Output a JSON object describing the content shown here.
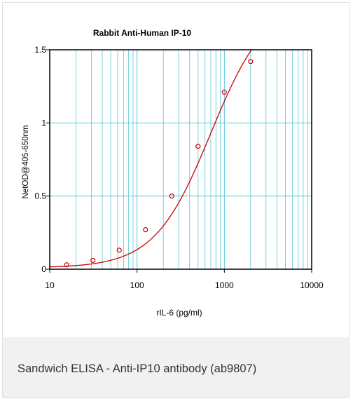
{
  "figure": {
    "caption": "Sandwich ELISA - Anti-IP10 antibody (ab9807)"
  },
  "chart_data": {
    "type": "scatter",
    "title": "Rabbit Anti-Human IP-10",
    "xlabel": "rIL-6 (pg/ml)",
    "ylabel": "NetOD@405-650nm",
    "x_scale": "log",
    "xlim": [
      10,
      10000
    ],
    "ylim": [
      0,
      1.5
    ],
    "x_ticks": [
      "10",
      "100",
      "1000",
      "10000"
    ],
    "y_ticks": [
      "0",
      "0.5",
      "1",
      "1.5"
    ],
    "grid": true,
    "colors": {
      "series": "#cc0000",
      "grid": "#5bc4d6"
    },
    "series": [
      {
        "points": [
          {
            "x": 15.6,
            "y": 0.03
          },
          {
            "x": 31.25,
            "y": 0.06
          },
          {
            "x": 62.5,
            "y": 0.13
          },
          {
            "x": 125,
            "y": 0.27
          },
          {
            "x": 250,
            "y": 0.5
          },
          {
            "x": 500,
            "y": 0.84
          },
          {
            "x": 1000,
            "y": 1.21
          },
          {
            "x": 2000,
            "y": 1.42
          }
        ],
        "fit": {
          "model": "4PL",
          "bottom": 0.01,
          "top": 1.85,
          "ec50": 700,
          "hill": 1.35
        }
      }
    ]
  }
}
